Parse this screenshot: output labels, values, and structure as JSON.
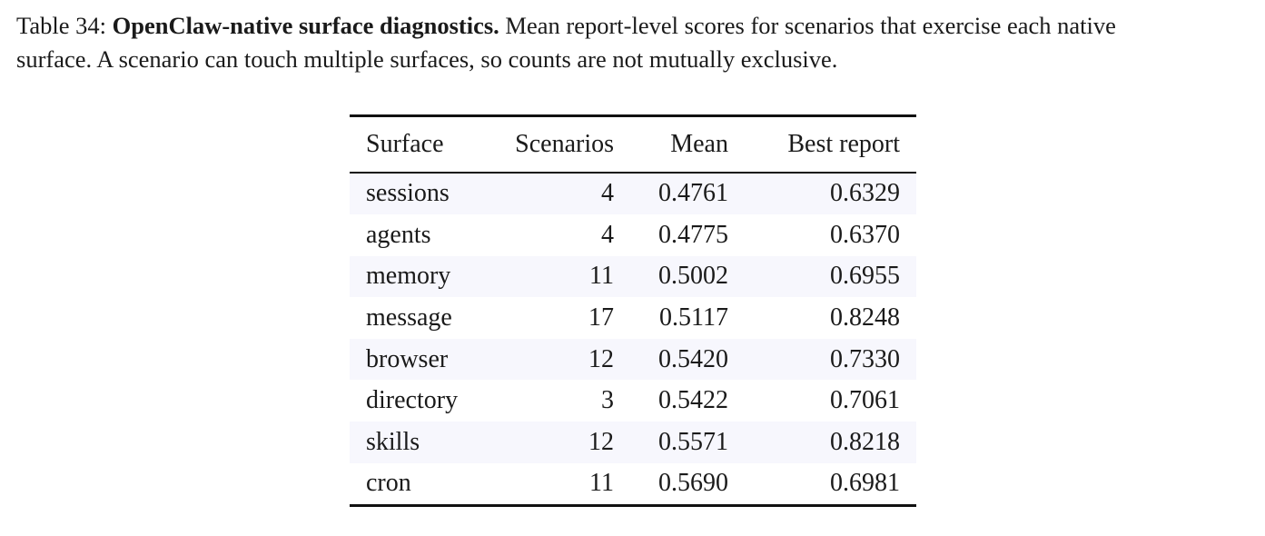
{
  "caption": {
    "label": "Table 34: ",
    "title": "OpenClaw-native surface diagnostics.",
    "text_line1": " Mean report-level scores for scenarios that exercise each native",
    "text_line2": "surface. A scenario can touch multiple surfaces, so counts are not mutually exclusive."
  },
  "table": {
    "headers": {
      "surface": "Surface",
      "scenarios": "Scenarios",
      "mean": "Mean",
      "best": "Best report"
    },
    "rows": [
      {
        "surface": "sessions",
        "scenarios": "4",
        "mean": "0.4761",
        "best": "0.6329"
      },
      {
        "surface": "agents",
        "scenarios": "4",
        "mean": "0.4775",
        "best": "0.6370"
      },
      {
        "surface": "memory",
        "scenarios": "11",
        "mean": "0.5002",
        "best": "0.6955"
      },
      {
        "surface": "message",
        "scenarios": "17",
        "mean": "0.5117",
        "best": "0.8248"
      },
      {
        "surface": "browser",
        "scenarios": "12",
        "mean": "0.5420",
        "best": "0.7330"
      },
      {
        "surface": "directory",
        "scenarios": "3",
        "mean": "0.5422",
        "best": "0.7061"
      },
      {
        "surface": "skills",
        "scenarios": "12",
        "mean": "0.5571",
        "best": "0.8218"
      },
      {
        "surface": "cron",
        "scenarios": "11",
        "mean": "0.5690",
        "best": "0.6981"
      }
    ]
  }
}
